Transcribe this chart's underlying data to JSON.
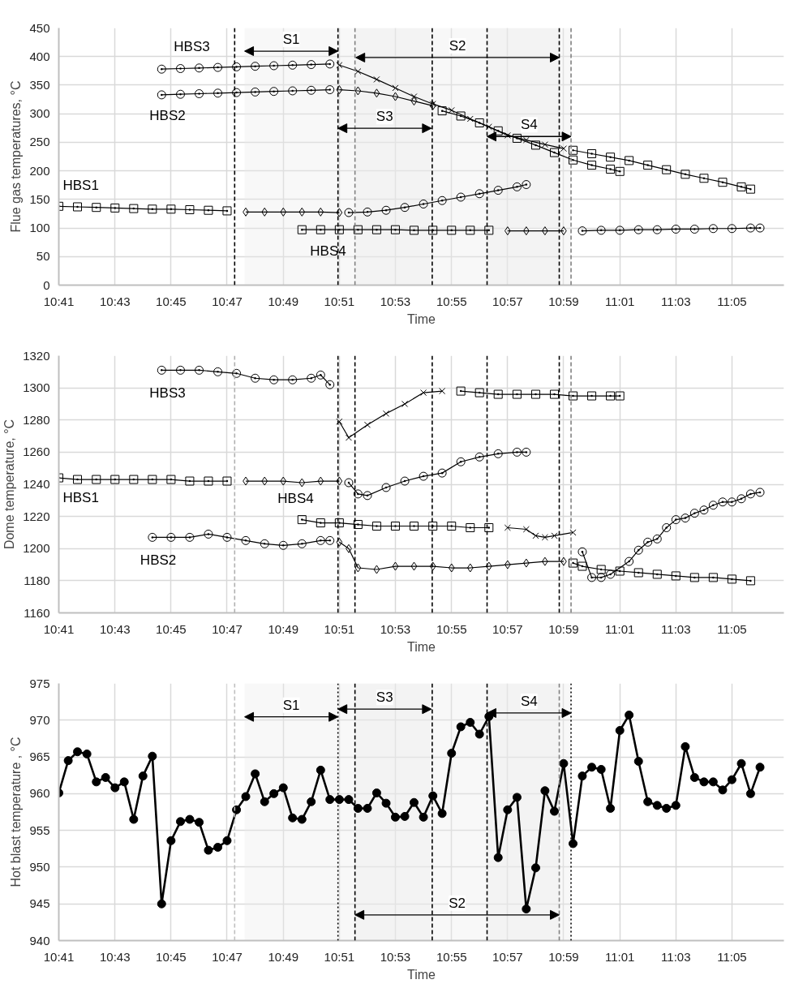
{
  "chart_data": [
    {
      "type": "line",
      "xlabel": "Time",
      "ylabel": "Flue gas temperatures, °C",
      "grid": true,
      "xlim": [
        10.6833,
        11.1142
      ],
      "ylim": [
        0,
        450
      ],
      "yticks": [
        0,
        50,
        100,
        150,
        200,
        250,
        300,
        350,
        400,
        450
      ],
      "xticks": [
        {
          "value": 10.6833,
          "label": "10:41"
        },
        {
          "value": 10.7167,
          "label": "10:43"
        },
        {
          "value": 10.75,
          "label": "10:45"
        },
        {
          "value": 10.7833,
          "label": "10:47"
        },
        {
          "value": 10.8167,
          "label": "10:49"
        },
        {
          "value": 10.85,
          "label": "10:51"
        },
        {
          "value": 10.8833,
          "label": "10:53"
        },
        {
          "value": 10.9167,
          "label": "10:55"
        },
        {
          "value": 10.95,
          "label": "10:57"
        },
        {
          "value": 10.9833,
          "label": "10:59"
        },
        {
          "value": 11.0167,
          "label": "11:01"
        },
        {
          "value": 11.05,
          "label": "11:03"
        },
        {
          "value": 11.0833,
          "label": "11:05"
        }
      ],
      "series": [
        {
          "name": "HBS3",
          "color": "#000000",
          "marker": "circle",
          "x": [
            10.7444,
            10.7556,
            10.7667,
            10.7778,
            10.7889,
            10.8,
            10.8111,
            10.8222,
            10.8333,
            10.8444
          ],
          "values": [
            378,
            379,
            380,
            381,
            382,
            383,
            384,
            385,
            386,
            387
          ]
        },
        {
          "color": "#000000",
          "marker": "cross",
          "x": [
            10.85,
            10.8611,
            10.8722,
            10.8833,
            10.8944,
            10.9056,
            10.9167,
            10.9278,
            10.9389,
            10.95,
            10.9611,
            10.9722,
            10.9833
          ],
          "values": [
            385,
            374,
            360,
            345,
            330,
            317,
            306,
            291,
            277,
            262,
            254,
            246,
            239
          ]
        },
        {
          "color": "#000000",
          "marker": "square",
          "x": [
            10.9889,
            11.0,
            11.0111,
            11.0222,
            11.0333,
            11.0444,
            11.0556,
            11.0667,
            11.0778,
            11.0889,
            11.0944
          ],
          "values": [
            236,
            230,
            224,
            218,
            210,
            202,
            194,
            187,
            180,
            172,
            168
          ]
        },
        {
          "name": "HBS2",
          "color": "#000000",
          "marker": "circle",
          "x": [
            10.7444,
            10.7556,
            10.7667,
            10.7778,
            10.7889,
            10.8,
            10.8111,
            10.8222,
            10.8333,
            10.8444
          ],
          "values": [
            333,
            334,
            335,
            336,
            337,
            338,
            339,
            340,
            341,
            342
          ]
        },
        {
          "color": "#000000",
          "marker": "diamond",
          "x": [
            10.85,
            10.8611,
            10.8722,
            10.8833,
            10.8944,
            10.9056
          ],
          "values": [
            342,
            340,
            336,
            330,
            322,
            314
          ]
        },
        {
          "color": "#000000",
          "marker": "square",
          "x": [
            10.9111,
            10.9222,
            10.9333,
            10.9444,
            10.9556,
            10.9667,
            10.9778,
            10.9889,
            11.0,
            11.0111,
            11.0167
          ],
          "values": [
            305,
            296,
            284,
            270,
            257,
            245,
            232,
            219,
            210,
            203,
            199
          ]
        },
        {
          "name": "HBS1",
          "color": "#000000",
          "marker": "square",
          "x": [
            10.6833,
            10.6944,
            10.7056,
            10.7167,
            10.7278,
            10.7389,
            10.75,
            10.7611,
            10.7722,
            10.7833
          ],
          "values": [
            138,
            137,
            136,
            135,
            134,
            133,
            133,
            132,
            131,
            130
          ]
        },
        {
          "color": "#000000",
          "marker": "diamond",
          "x": [
            10.7944,
            10.8056,
            10.8167,
            10.8278,
            10.8389,
            10.85
          ],
          "values": [
            128,
            128,
            128,
            128,
            128,
            127
          ]
        },
        {
          "color": "#000000",
          "marker": "circle",
          "x": [
            10.8556,
            10.8667,
            10.8778,
            10.8889,
            10.9,
            10.9111,
            10.9222,
            10.9333,
            10.9444,
            10.9556,
            10.9611
          ],
          "values": [
            127,
            128,
            131,
            136,
            142,
            148,
            154,
            160,
            166,
            172,
            176
          ]
        },
        {
          "name": "HBS4",
          "color": "#000000",
          "marker": "square",
          "x": [
            10.8278,
            10.8389,
            10.85,
            10.8611,
            10.8722,
            10.8833,
            10.8944,
            10.9056,
            10.9167,
            10.9278,
            10.9389
          ],
          "values": [
            97,
            97,
            97,
            97,
            97,
            97,
            96,
            96,
            96,
            96,
            96
          ]
        },
        {
          "color": "#000000",
          "marker": "diamond",
          "x": [
            10.95,
            10.9611,
            10.9722,
            10.9833
          ],
          "values": [
            95,
            95,
            95,
            95
          ]
        },
        {
          "color": "#000000",
          "marker": "circle",
          "x": [
            10.9944,
            11.0056,
            11.0167,
            11.0278,
            11.0389,
            11.05,
            11.0611,
            11.0722,
            11.0833,
            11.0944,
            11.1
          ],
          "values": [
            95,
            96,
            96,
            97,
            97,
            98,
            98,
            99,
            99,
            100,
            100
          ]
        }
      ],
      "ref_lines": [
        {
          "axis": "x",
          "value": 10.7878,
          "color": "#000000",
          "line_style": "dashed"
        },
        {
          "axis": "x",
          "value": 10.8492,
          "color": "#000000",
          "line_style": "dashed"
        },
        {
          "axis": "x",
          "value": 10.8593,
          "color": "#808080",
          "line_style": "dashed"
        },
        {
          "axis": "x",
          "value": 10.9052,
          "color": "#000000",
          "line_style": "dashed"
        },
        {
          "axis": "x",
          "value": 10.9378,
          "color": "#000000",
          "line_style": "dashed"
        },
        {
          "axis": "x",
          "value": 10.9807,
          "color": "#000000",
          "line_style": "dashed"
        },
        {
          "axis": "x",
          "value": 10.9877,
          "color": "#808080",
          "line_style": "dashed"
        }
      ],
      "bands": [
        {
          "axis": "x",
          "from": 10.7937,
          "to": 10.8492,
          "label": "S1",
          "color": "#ececec"
        },
        {
          "axis": "x",
          "from": 10.8598,
          "to": 10.9807,
          "label": "S2",
          "color": "#ececec"
        },
        {
          "axis": "x",
          "from": 10.8492,
          "to": 10.9047,
          "label": "S3",
          "color": "#ececec"
        },
        {
          "axis": "x",
          "from": 10.9378,
          "to": 10.9877,
          "label": "S4",
          "color": "#ececec"
        }
      ]
    },
    {
      "type": "line",
      "xlabel": "Time",
      "ylabel": "Dome temperature, °C",
      "grid": true,
      "xlim": [
        10.6833,
        11.1142
      ],
      "ylim": [
        1160,
        1320
      ],
      "yticks": [
        1160,
        1180,
        1200,
        1220,
        1240,
        1260,
        1280,
        1300,
        1320
      ],
      "xticks": [
        {
          "value": 10.6833,
          "label": "10:41"
        },
        {
          "value": 10.7167,
          "label": "10:43"
        },
        {
          "value": 10.75,
          "label": "10:45"
        },
        {
          "value": 10.7833,
          "label": "10:47"
        },
        {
          "value": 10.8167,
          "label": "10:49"
        },
        {
          "value": 10.85,
          "label": "10:51"
        },
        {
          "value": 10.8833,
          "label": "10:53"
        },
        {
          "value": 10.9167,
          "label": "10:55"
        },
        {
          "value": 10.95,
          "label": "10:57"
        },
        {
          "value": 10.9833,
          "label": "10:59"
        },
        {
          "value": 11.0167,
          "label": "11:01"
        },
        {
          "value": 11.05,
          "label": "11:03"
        },
        {
          "value": 11.0833,
          "label": "11:05"
        }
      ],
      "series": [
        {
          "name": "HBS3",
          "color": "#000000",
          "marker": "circle",
          "x": [
            10.7444,
            10.7556,
            10.7667,
            10.7778,
            10.7889,
            10.8,
            10.8111,
            10.8222,
            10.8333,
            10.8389,
            10.8444
          ],
          "values": [
            1311,
            1311,
            1311,
            1310,
            1309,
            1306,
            1305,
            1305,
            1306,
            1308,
            1302
          ]
        },
        {
          "color": "#000000",
          "marker": "cross",
          "x": [
            10.85,
            10.8556,
            10.8667,
            10.8778,
            10.8889,
            10.9,
            10.9111
          ],
          "values": [
            1279,
            1269,
            1277,
            1284,
            1290,
            1297,
            1298
          ]
        },
        {
          "color": "#000000",
          "marker": "square",
          "x": [
            10.9222,
            10.9333,
            10.9444,
            10.9556,
            10.9667,
            10.9778,
            10.9889,
            11.0,
            11.0111,
            11.0167
          ],
          "values": [
            1298,
            1297,
            1296,
            1296,
            1296,
            1296,
            1295,
            1295,
            1295,
            1295
          ]
        },
        {
          "name": "HBS2",
          "color": "#000000",
          "marker": "circle",
          "x": [
            10.7389,
            10.75,
            10.7611,
            10.7722,
            10.7833,
            10.7944,
            10.8056,
            10.8167,
            10.8278,
            10.8389,
            10.8444
          ],
          "values": [
            1207,
            1207,
            1207,
            1209,
            1207,
            1205,
            1203,
            1202,
            1203,
            1205,
            1205
          ]
        },
        {
          "color": "#000000",
          "marker": "diamond",
          "x": [
            10.85,
            10.8556,
            10.8611,
            10.8722,
            10.8833,
            10.8944,
            10.9056,
            10.9167,
            10.9278,
            10.9389,
            10.95,
            10.9611,
            10.9722,
            10.9833
          ],
          "values": [
            1204,
            1200,
            1188,
            1187,
            1189,
            1189,
            1189,
            1188,
            1188,
            1189,
            1190,
            1191,
            1192,
            1192
          ]
        },
        {
          "color": "#000000",
          "marker": "square",
          "x": [
            10.9889,
            10.9944,
            11.0056,
            11.0167,
            11.0278,
            11.0389,
            11.05,
            11.0611,
            11.0722,
            11.0833,
            11.0944
          ],
          "values": [
            1191,
            1189,
            1187,
            1186,
            1185,
            1184,
            1183,
            1182,
            1182,
            1181,
            1180
          ]
        },
        {
          "name": "HBS1",
          "color": "#000000",
          "marker": "square",
          "x": [
            10.6833,
            10.6944,
            10.7056,
            10.7167,
            10.7278,
            10.7389,
            10.75,
            10.7611,
            10.7722,
            10.7833
          ],
          "values": [
            1244,
            1243,
            1243,
            1243,
            1243,
            1243,
            1243,
            1242,
            1242,
            1242
          ]
        },
        {
          "color": "#000000",
          "marker": "diamond",
          "x": [
            10.7944,
            10.8056,
            10.8167,
            10.8278,
            10.8389,
            10.85
          ],
          "values": [
            1242,
            1242,
            1242,
            1241,
            1242,
            1242
          ]
        },
        {
          "color": "#000000",
          "marker": "circle",
          "x": [
            10.8556,
            10.8611,
            10.8667,
            10.8778,
            10.8889,
            10.9,
            10.9111,
            10.9222,
            10.9333,
            10.9444,
            10.9556,
            10.9611
          ],
          "values": [
            1241,
            1234,
            1233,
            1238,
            1242,
            1245,
            1247,
            1254,
            1257,
            1259,
            1260,
            1260
          ]
        },
        {
          "name": "HBS4",
          "color": "#000000",
          "marker": "square",
          "x": [
            10.8278,
            10.8389,
            10.85,
            10.8611,
            10.8722,
            10.8833,
            10.8944,
            10.9056,
            10.9167,
            10.9278,
            10.9389
          ],
          "values": [
            1218,
            1216,
            1216,
            1215,
            1214,
            1214,
            1214,
            1214,
            1214,
            1213,
            1213
          ]
        },
        {
          "color": "#000000",
          "marker": "cross",
          "x": [
            10.95,
            10.9611,
            10.9667,
            10.9722,
            10.9778,
            10.9889
          ],
          "values": [
            1213,
            1212,
            1208,
            1207,
            1208,
            1210
          ]
        },
        {
          "color": "#000000",
          "marker": "circle",
          "x": [
            10.9944,
            11.0,
            11.0056,
            11.0111,
            11.0222,
            11.0278,
            11.0333,
            11.0389,
            11.0444,
            11.05,
            11.0556,
            11.0611,
            11.0667,
            11.0722,
            11.0778,
            11.0833,
            11.0889,
            11.0944,
            11.1
          ],
          "values": [
            1198,
            1182,
            1182,
            1184,
            1192,
            1199,
            1204,
            1206,
            1213,
            1218,
            1219,
            1222,
            1224,
            1227,
            1229,
            1229,
            1231,
            1234,
            1235
          ]
        }
      ],
      "ref_lines": [
        {
          "axis": "x",
          "value": 10.7878,
          "color": "#b0b0b0",
          "line_style": "dashed"
        },
        {
          "axis": "x",
          "value": 10.8492,
          "color": "#000000",
          "line_style": "dashed"
        },
        {
          "axis": "x",
          "value": 10.8593,
          "color": "#000000",
          "line_style": "dashed"
        },
        {
          "axis": "x",
          "value": 10.9052,
          "color": "#000000",
          "line_style": "dashed"
        },
        {
          "axis": "x",
          "value": 10.9378,
          "color": "#000000",
          "line_style": "dashed"
        },
        {
          "axis": "x",
          "value": 10.9807,
          "color": "#000000",
          "line_style": "dashed"
        },
        {
          "axis": "x",
          "value": 10.9877,
          "color": "#808080",
          "line_style": "dashed"
        }
      ]
    },
    {
      "type": "line",
      "xlabel": "Time",
      "ylabel": "Hot blast temperature , °C",
      "grid": true,
      "xlim": [
        10.6833,
        11.1142
      ],
      "ylim": [
        940,
        975
      ],
      "yticks": [
        940,
        945,
        950,
        955,
        960,
        965,
        970,
        975
      ],
      "xticks": [
        {
          "value": 10.6833,
          "label": "10:41"
        },
        {
          "value": 10.7167,
          "label": "10:43"
        },
        {
          "value": 10.75,
          "label": "10:45"
        },
        {
          "value": 10.7833,
          "label": "10:47"
        },
        {
          "value": 10.8167,
          "label": "10:49"
        },
        {
          "value": 10.85,
          "label": "10:51"
        },
        {
          "value": 10.8833,
          "label": "10:53"
        },
        {
          "value": 10.9167,
          "label": "10:55"
        },
        {
          "value": 10.95,
          "label": "10:57"
        },
        {
          "value": 10.9833,
          "label": "10:59"
        },
        {
          "value": 11.0167,
          "label": "11:01"
        },
        {
          "value": 11.05,
          "label": "11:03"
        },
        {
          "value": 11.0833,
          "label": "11:05"
        }
      ],
      "series": [
        {
          "color": "#000000",
          "marker": "circle",
          "x": [
            10.6833,
            10.6889,
            10.6944,
            10.7,
            10.7056,
            10.7111,
            10.7167,
            10.7222,
            10.7278,
            10.7333,
            10.7389,
            10.7444,
            10.75,
            10.7556,
            10.7611,
            10.7667,
            10.7722,
            10.7778,
            10.7833,
            10.7889,
            10.7944,
            10.8,
            10.8056,
            10.8111,
            10.8167,
            10.8222,
            10.8278,
            10.8333,
            10.8389,
            10.8444,
            10.85,
            10.8556,
            10.8611,
            10.8667,
            10.8722,
            10.8778,
            10.8833,
            10.8889,
            10.8944,
            10.9,
            10.9056,
            10.9111,
            10.9167,
            10.9222,
            10.9278,
            10.9333,
            10.9389,
            10.9444,
            10.95,
            10.9556,
            10.9611,
            10.9667,
            10.9722,
            10.9778,
            10.9833,
            10.9889,
            10.9944,
            11.0,
            11.0056,
            11.0111,
            11.0167,
            11.0222,
            11.0278,
            11.0333,
            11.0389,
            11.0444,
            11.05,
            11.0556,
            11.0611,
            11.0667,
            11.0722,
            11.0778,
            11.0833,
            11.0889,
            11.0944,
            11.1
          ],
          "values": [
            960.1,
            964.5,
            965.7,
            965.4,
            961.6,
            962.2,
            960.8,
            961.6,
            956.5,
            962.4,
            965.1,
            945.0,
            953.6,
            956.2,
            956.5,
            956.1,
            952.3,
            952.7,
            953.6,
            957.8,
            959.6,
            962.7,
            958.9,
            960.0,
            960.8,
            956.7,
            956.5,
            958.9,
            963.2,
            959.2,
            959.2,
            959.2,
            958.0,
            958.0,
            960.1,
            958.7,
            956.8,
            956.9,
            958.8,
            956.8,
            959.7,
            957.3,
            965.5,
            969.1,
            969.7,
            968.1,
            970.5,
            951.3,
            957.8,
            959.5,
            944.3,
            949.9,
            960.4,
            957.6,
            964.1,
            953.2,
            962.4,
            963.6,
            963.3,
            958.0,
            968.6,
            970.7,
            964.4,
            958.9,
            958.4,
            958.0,
            958.4,
            966.4,
            962.2,
            961.6,
            961.6,
            960.5,
            961.9,
            964.1,
            960.0,
            963.6
          ]
        }
      ],
      "ref_lines": [
        {
          "axis": "x",
          "value": 10.7878,
          "color": "#c0c0c0",
          "line_style": "dashed"
        },
        {
          "axis": "x",
          "value": 10.8492,
          "color": "#000000",
          "line_style": "dotted"
        },
        {
          "axis": "x",
          "value": 10.8593,
          "color": "#000000",
          "line_style": "dashed"
        },
        {
          "axis": "x",
          "value": 10.9052,
          "color": "#000000",
          "line_style": "dashed"
        },
        {
          "axis": "x",
          "value": 10.9378,
          "color": "#000000",
          "line_style": "dashed"
        },
        {
          "axis": "x",
          "value": 10.9807,
          "color": "#808080",
          "line_style": "dashed"
        },
        {
          "axis": "x",
          "value": 10.9877,
          "color": "#000000",
          "line_style": "dotted"
        }
      ],
      "bands": [
        {
          "axis": "x",
          "from": 10.7937,
          "to": 10.8492,
          "label": "S1",
          "color": "#ececec"
        },
        {
          "axis": "x",
          "from": 10.8593,
          "to": 10.9807,
          "label": "S2",
          "color": "#ececec"
        },
        {
          "axis": "x",
          "from": 10.8492,
          "to": 10.9047,
          "label": "S3",
          "color": "#ececec"
        },
        {
          "axis": "x",
          "from": 10.9378,
          "to": 10.9877,
          "label": "S4",
          "color": "#ececec"
        }
      ]
    }
  ]
}
